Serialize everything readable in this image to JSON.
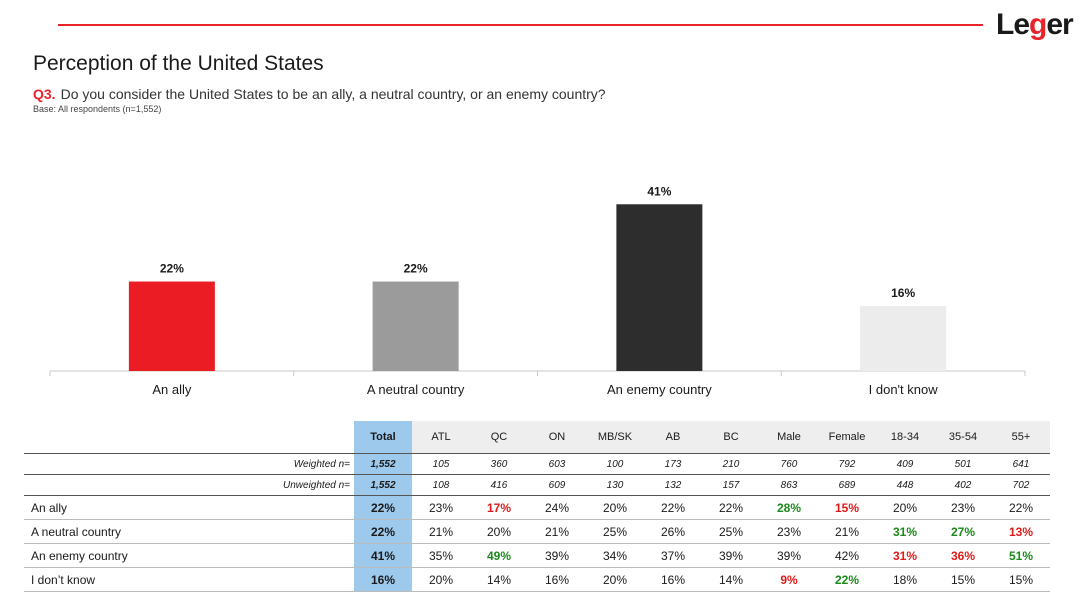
{
  "logo": {
    "pre": "Le",
    "g": "g",
    "post": "er"
  },
  "header": {
    "title": "Perception of the United States",
    "question_number": "Q3.",
    "question_text": "Do you consider the United States to be an ally, a neutral country, or an enemy country?",
    "base": "Base: All respondents (n=1,552)"
  },
  "colors": {
    "accent": "#e8232a",
    "total_bg": "#9dc9ec",
    "sig_up": "#1a8a1a",
    "sig_down": "#e01a1a"
  },
  "chart_data": {
    "type": "bar",
    "categories": [
      "An ally",
      "A neutral country",
      "An enemy country",
      "I don't know"
    ],
    "values": [
      22,
      22,
      41,
      16
    ],
    "value_labels": [
      "22%",
      "22%",
      "41%",
      "16%"
    ],
    "bar_colors": [
      "#ec1c24",
      "#9b9b9b",
      "#2d2d2d",
      "#ececec"
    ],
    "ylim": [
      0,
      45
    ],
    "grid": false
  },
  "table": {
    "headers": [
      "Total",
      "ATL",
      "QC",
      "ON",
      "MB/SK",
      "AB",
      "BC",
      "Male",
      "Female",
      "18-34",
      "35-54",
      "55+"
    ],
    "n_rows": [
      {
        "label": "Weighted n=",
        "cells": [
          "1,552",
          "105",
          "360",
          "603",
          "100",
          "173",
          "210",
          "760",
          "792",
          "409",
          "501",
          "641"
        ]
      },
      {
        "label": "Unweighted n=",
        "cells": [
          "1,552",
          "108",
          "416",
          "609",
          "130",
          "132",
          "157",
          "863",
          "689",
          "448",
          "402",
          "702"
        ]
      }
    ],
    "rows": [
      {
        "label": "An ally",
        "cells": [
          {
            "v": "22%",
            "s": ""
          },
          {
            "v": "23%",
            "s": ""
          },
          {
            "v": "17%",
            "s": "down"
          },
          {
            "v": "24%",
            "s": ""
          },
          {
            "v": "20%",
            "s": ""
          },
          {
            "v": "22%",
            "s": ""
          },
          {
            "v": "22%",
            "s": ""
          },
          {
            "v": "28%",
            "s": "up"
          },
          {
            "v": "15%",
            "s": "down"
          },
          {
            "v": "20%",
            "s": ""
          },
          {
            "v": "23%",
            "s": ""
          },
          {
            "v": "22%",
            "s": ""
          }
        ]
      },
      {
        "label": "A neutral country",
        "cells": [
          {
            "v": "22%",
            "s": ""
          },
          {
            "v": "21%",
            "s": ""
          },
          {
            "v": "20%",
            "s": ""
          },
          {
            "v": "21%",
            "s": ""
          },
          {
            "v": "25%",
            "s": ""
          },
          {
            "v": "26%",
            "s": ""
          },
          {
            "v": "25%",
            "s": ""
          },
          {
            "v": "23%",
            "s": ""
          },
          {
            "v": "21%",
            "s": ""
          },
          {
            "v": "31%",
            "s": "up"
          },
          {
            "v": "27%",
            "s": "up"
          },
          {
            "v": "13%",
            "s": "down"
          }
        ]
      },
      {
        "label": "An enemy country",
        "cells": [
          {
            "v": "41%",
            "s": ""
          },
          {
            "v": "35%",
            "s": ""
          },
          {
            "v": "49%",
            "s": "up"
          },
          {
            "v": "39%",
            "s": ""
          },
          {
            "v": "34%",
            "s": ""
          },
          {
            "v": "37%",
            "s": ""
          },
          {
            "v": "39%",
            "s": ""
          },
          {
            "v": "39%",
            "s": ""
          },
          {
            "v": "42%",
            "s": ""
          },
          {
            "v": "31%",
            "s": "down"
          },
          {
            "v": "36%",
            "s": "down"
          },
          {
            "v": "51%",
            "s": "up"
          }
        ]
      },
      {
        "label": "I don’t know",
        "cells": [
          {
            "v": "16%",
            "s": ""
          },
          {
            "v": "20%",
            "s": ""
          },
          {
            "v": "14%",
            "s": ""
          },
          {
            "v": "16%",
            "s": ""
          },
          {
            "v": "20%",
            "s": ""
          },
          {
            "v": "16%",
            "s": ""
          },
          {
            "v": "14%",
            "s": ""
          },
          {
            "v": "9%",
            "s": "down"
          },
          {
            "v": "22%",
            "s": "up"
          },
          {
            "v": "18%",
            "s": ""
          },
          {
            "v": "15%",
            "s": ""
          },
          {
            "v": "15%",
            "s": ""
          }
        ]
      }
    ]
  }
}
